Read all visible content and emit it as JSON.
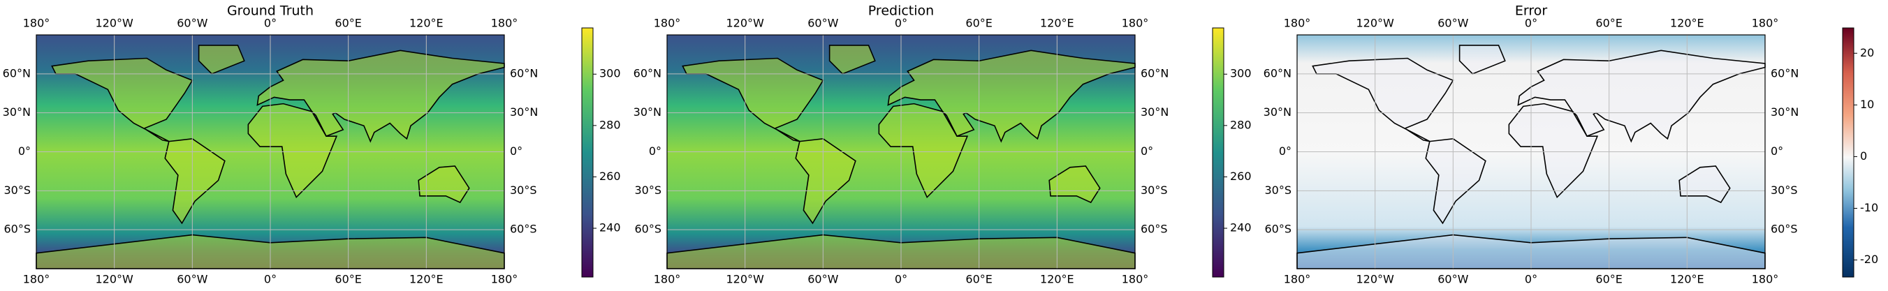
{
  "chart_data": [
    {
      "type": "map",
      "title": "Ground Truth",
      "colormap": "viridis",
      "clim": [
        221,
        318
      ],
      "cticks": [
        240,
        260,
        280,
        300
      ],
      "xlim": [
        -180,
        180
      ],
      "ylim": [
        -90,
        90
      ],
      "xticks": [
        {
          "value": -180,
          "label": "180°"
        },
        {
          "value": -120,
          "label": "120°W"
        },
        {
          "value": -60,
          "label": "60°W"
        },
        {
          "value": 0,
          "label": "0°"
        },
        {
          "value": 60,
          "label": "60°E"
        },
        {
          "value": 120,
          "label": "120°E"
        },
        {
          "value": 180,
          "label": "180°"
        }
      ],
      "yticks": [
        {
          "value": 60,
          "label": "60°N"
        },
        {
          "value": 30,
          "label": "30°N"
        },
        {
          "value": 0,
          "label": "0°"
        },
        {
          "value": -30,
          "label": "30°S"
        },
        {
          "value": -60,
          "label": "60°S"
        }
      ],
      "grid": true
    },
    {
      "type": "map",
      "title": "Prediction",
      "colormap": "viridis",
      "clim": [
        221,
        318
      ],
      "cticks": [
        240,
        260,
        280,
        300
      ],
      "xlim": [
        -180,
        180
      ],
      "ylim": [
        -90,
        90
      ],
      "xticks": [
        {
          "value": -180,
          "label": "180°"
        },
        {
          "value": -120,
          "label": "120°W"
        },
        {
          "value": -60,
          "label": "60°W"
        },
        {
          "value": 0,
          "label": "0°"
        },
        {
          "value": 60,
          "label": "60°E"
        },
        {
          "value": 120,
          "label": "120°E"
        },
        {
          "value": 180,
          "label": "180°"
        }
      ],
      "yticks": [
        {
          "value": 60,
          "label": "60°N"
        },
        {
          "value": 30,
          "label": "30°N"
        },
        {
          "value": 0,
          "label": "0°"
        },
        {
          "value": -30,
          "label": "30°S"
        },
        {
          "value": -60,
          "label": "60°S"
        }
      ],
      "grid": true
    },
    {
      "type": "map",
      "title": "Error",
      "colormap": "RdBu_r",
      "clim": [
        -23.3,
        24.9
      ],
      "cticks": [
        -20,
        -10,
        0,
        10,
        20
      ],
      "xlim": [
        -180,
        180
      ],
      "ylim": [
        -90,
        90
      ],
      "xticks": [
        {
          "value": -180,
          "label": "180°"
        },
        {
          "value": -120,
          "label": "120°W"
        },
        {
          "value": -60,
          "label": "60°W"
        },
        {
          "value": 0,
          "label": "0°"
        },
        {
          "value": 60,
          "label": "60°E"
        },
        {
          "value": 120,
          "label": "120°E"
        },
        {
          "value": 180,
          "label": "180°"
        }
      ],
      "yticks": [
        {
          "value": 60,
          "label": "60°N"
        },
        {
          "value": 30,
          "label": "30°N"
        },
        {
          "value": 0,
          "label": "0°"
        },
        {
          "value": -30,
          "label": "30°S"
        },
        {
          "value": -60,
          "label": "60°S"
        }
      ],
      "grid": true
    }
  ]
}
